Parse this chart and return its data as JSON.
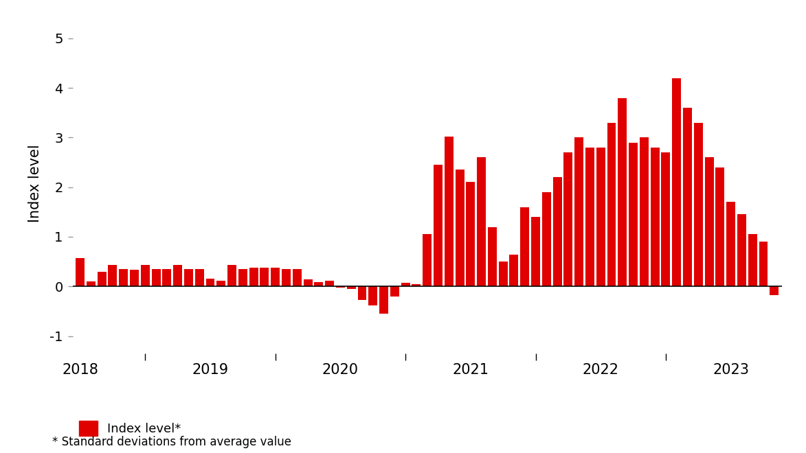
{
  "ylabel": "Index level",
  "legend_label": "Index level*",
  "footnote": "* Standard deviations from average value",
  "bar_color": "#e00000",
  "background_color": "#ffffff",
  "ylim": [
    -1.35,
    5.5
  ],
  "yticks": [
    -1,
    0,
    1,
    2,
    3,
    4,
    5
  ],
  "values": [
    0.57,
    0.1,
    0.3,
    0.43,
    0.35,
    0.33,
    0.43,
    0.35,
    0.35,
    0.43,
    0.35,
    0.35,
    0.15,
    0.12,
    0.43,
    0.35,
    0.38,
    0.38,
    0.38,
    0.35,
    0.35,
    0.14,
    0.08,
    0.12,
    -0.03,
    -0.05,
    -0.28,
    -0.38,
    -0.55,
    -0.2,
    0.07,
    0.05,
    1.05,
    2.45,
    3.02,
    2.35,
    2.1,
    2.6,
    1.2,
    0.5,
    0.64,
    1.6,
    1.4,
    1.9,
    2.2,
    2.7,
    3.0,
    2.8,
    2.8,
    3.3,
    3.8,
    2.9,
    3.0,
    2.8,
    2.7,
    4.2,
    3.6,
    3.3,
    2.6,
    2.4,
    1.7,
    1.45,
    1.05,
    0.9,
    -0.18
  ],
  "major_xtick_positions": [
    0,
    12,
    24,
    36,
    48,
    60
  ],
  "major_xtick_labels": [
    "2018",
    "2019",
    "2020",
    "2021",
    "2022",
    "2023"
  ],
  "minor_xtick_positions": [
    6,
    18,
    30,
    42,
    54
  ]
}
